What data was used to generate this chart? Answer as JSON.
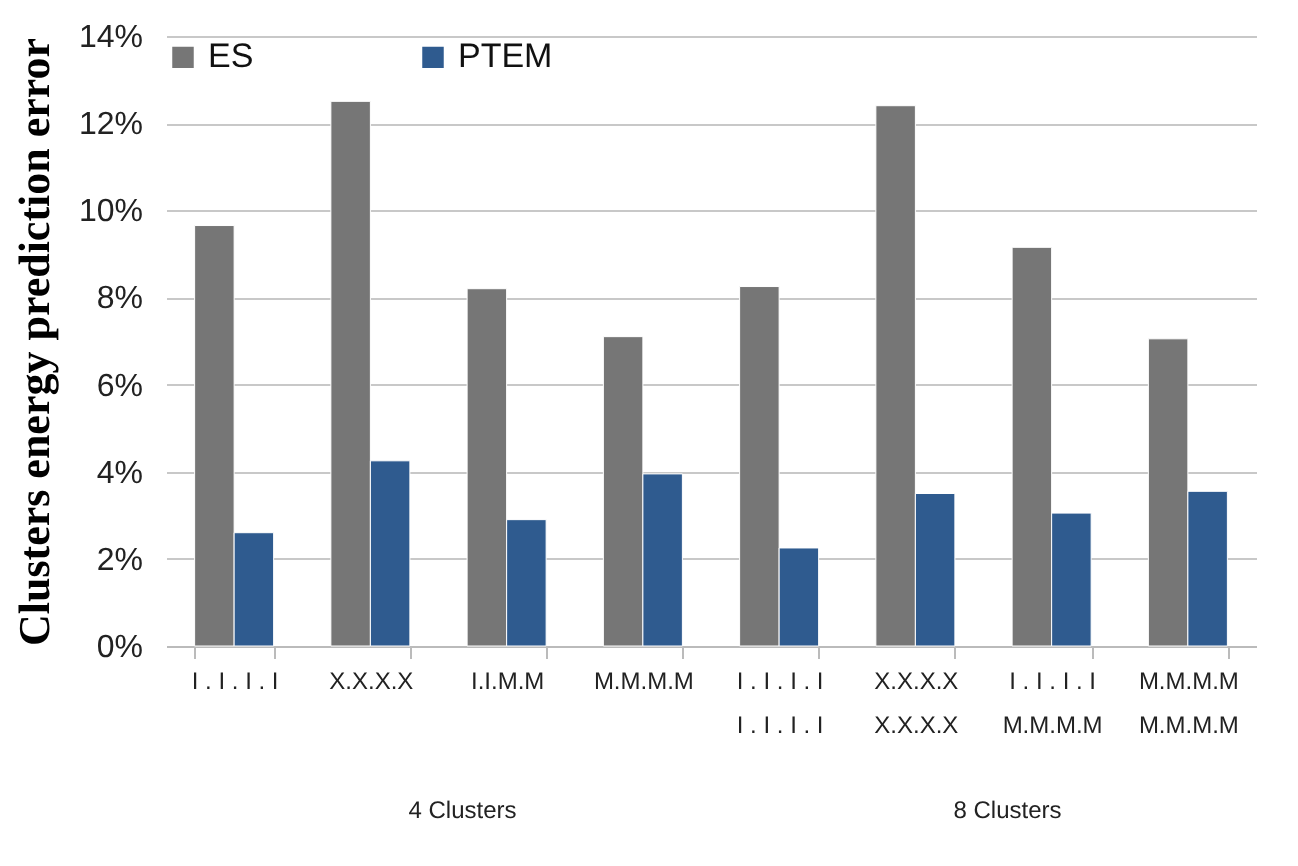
{
  "chart_data": {
    "type": "bar",
    "ylabel": "Clusters energy prediction error",
    "categories": [
      "I . I . I . I",
      "X.X.X.X",
      "I.I.M.M",
      "M.M.M.M",
      "I . I . I . I\nI . I . I . I",
      "X.X.X.X\nX.X.X.X",
      "I . I . I . I\nM.M.M.M",
      "M.M.M.M\nM.M.M.M"
    ],
    "series": [
      {
        "name": "ES",
        "color": "#767676",
        "values": [
          9.65,
          12.5,
          8.2,
          7.1,
          8.25,
          12.4,
          9.15,
          7.05
        ]
      },
      {
        "name": "PTEM",
        "color": "#2f5b8f",
        "values": [
          2.6,
          4.25,
          2.9,
          3.95,
          2.25,
          3.5,
          3.05,
          3.55
        ]
      }
    ],
    "ylim": [
      0,
      14
    ],
    "yticks": [
      {
        "value": 0,
        "label": "0%"
      },
      {
        "value": 2,
        "label": "2%"
      },
      {
        "value": 4,
        "label": "4%"
      },
      {
        "value": 6,
        "label": "6%"
      },
      {
        "value": 8,
        "label": "8%"
      },
      {
        "value": 10,
        "label": "10%"
      },
      {
        "value": 12,
        "label": "12%"
      },
      {
        "value": 14,
        "label": "14%"
      }
    ],
    "grid": "y",
    "legend": "top",
    "annotations": [
      "4 Clusters",
      "8 Clusters"
    ]
  }
}
